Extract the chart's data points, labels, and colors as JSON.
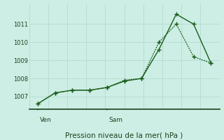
{
  "title": "Pression niveau de la mer( hPa )",
  "bg_color": "#cceee4",
  "grid_color": "#b8ddd4",
  "line_color": "#1a5c1a",
  "axis_color": "#1a4420",
  "text_color": "#1a4420",
  "ylim": [
    1006.3,
    1012.1
  ],
  "yticks": [
    1007,
    1008,
    1009,
    1010,
    1011
  ],
  "xlim": [
    0,
    22
  ],
  "ven_x": 1,
  "sam_x": 9,
  "series1_x": [
    1,
    3,
    5,
    7,
    9,
    11,
    13,
    15,
    17,
    19,
    21
  ],
  "series1_y": [
    1006.6,
    1007.2,
    1007.35,
    1007.35,
    1007.5,
    1007.85,
    1008.0,
    1009.6,
    1011.55,
    1011.0,
    1008.85
  ],
  "series2_x": [
    1,
    3,
    5,
    7,
    9,
    11,
    13,
    15,
    17,
    19,
    21
  ],
  "series2_y": [
    1006.6,
    1007.2,
    1007.35,
    1007.35,
    1007.5,
    1007.9,
    1008.0,
    1010.0,
    1011.0,
    1009.2,
    1008.85
  ]
}
